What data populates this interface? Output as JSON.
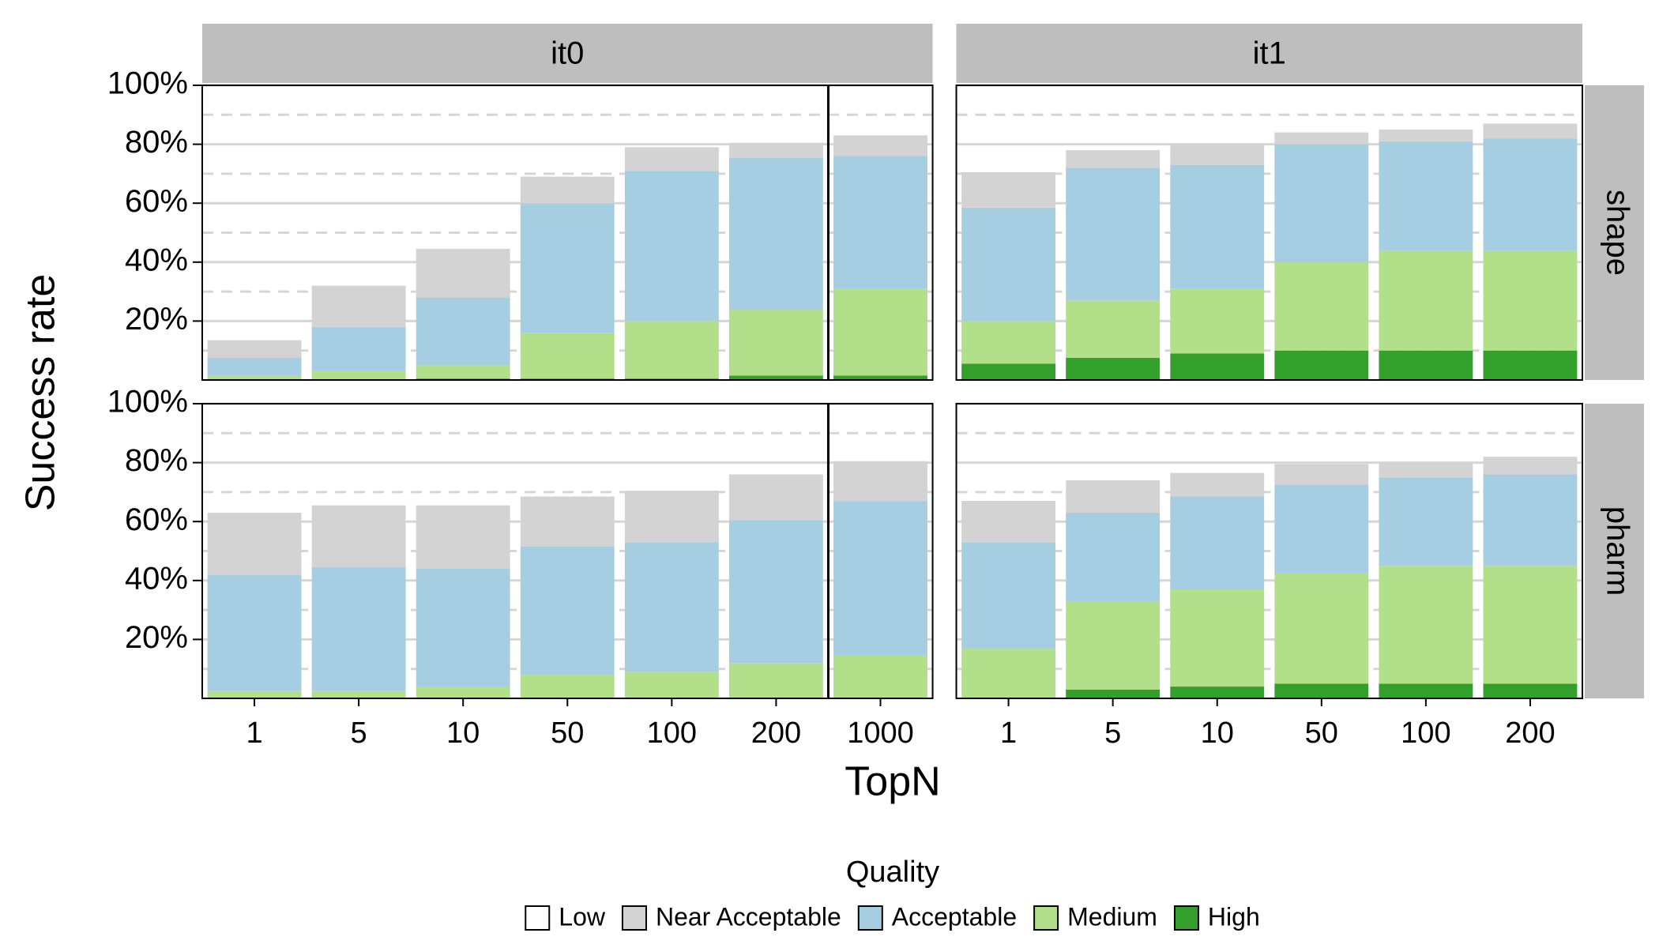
{
  "chart_data": {
    "type": "bar",
    "stacked": true,
    "y_label": "Success rate",
    "x_label": "TopN",
    "legend_title": "Quality",
    "ylim": [
      0,
      100
    ],
    "yticks": [
      {
        "value": 20,
        "label": "20%"
      },
      {
        "value": 40,
        "label": "40%"
      },
      {
        "value": 60,
        "label": "60%"
      },
      {
        "value": 80,
        "label": "80%"
      },
      {
        "value": 100,
        "label": "100%"
      }
    ],
    "minor_yticks": [
      10,
      30,
      50,
      70,
      90
    ],
    "grid": true,
    "legend_position": "bottom",
    "series": [
      {
        "name": "Low",
        "color": "#ffffff"
      },
      {
        "name": "Near Acceptable",
        "color": "#d3d3d3"
      },
      {
        "name": "Acceptable",
        "color": "#a6cee3"
      },
      {
        "name": "Medium",
        "color": "#b2df8a"
      },
      {
        "name": "High",
        "color": "#33a02c"
      }
    ],
    "stack_order": [
      4,
      3,
      2,
      1,
      0
    ],
    "columns": [
      {
        "label": "it0",
        "categories": [
          "1",
          "5",
          "10",
          "50",
          "100",
          "200",
          "1000"
        ],
        "vline_before_category": 6
      },
      {
        "label": "it1",
        "categories": [
          "1",
          "5",
          "10",
          "50",
          "100",
          "200"
        ]
      }
    ],
    "rows": [
      "shape",
      "pharm"
    ],
    "panels": [
      {
        "row": 0,
        "column": 0,
        "series": [
          {
            "values": [
              null,
              null,
              null,
              null,
              null,
              null,
              null
            ]
          },
          {
            "values": [
              6,
              14,
              16.5,
              9,
              8,
              5,
              7
            ]
          },
          {
            "values": [
              6,
              15,
              23,
              44,
              51,
              51.5,
              45
            ]
          },
          {
            "values": [
              1.5,
              3,
              4.5,
              15.5,
              19.5,
              22.5,
              29.5
            ]
          },
          {
            "values": [
              0,
              0,
              0.5,
              0.5,
              0.5,
              1.5,
              1.5
            ]
          }
        ]
      },
      {
        "row": 0,
        "column": 1,
        "series": [
          {
            "values": [
              null,
              null,
              null,
              null,
              null,
              null
            ]
          },
          {
            "values": [
              12,
              6,
              7,
              4,
              4,
              5
            ]
          },
          {
            "values": [
              38.5,
              45,
              42,
              40,
              37,
              38
            ]
          },
          {
            "values": [
              14.5,
              19.5,
              22,
              30,
              34,
              34
            ]
          },
          {
            "values": [
              5.5,
              7.5,
              9,
              10,
              10,
              10
            ]
          }
        ]
      },
      {
        "row": 1,
        "column": 0,
        "series": [
          {
            "values": [
              null,
              null,
              null,
              null,
              null,
              null,
              null
            ]
          },
          {
            "values": [
              21,
              21,
              21.5,
              17,
              17.5,
              15.5,
              13.5
            ]
          },
          {
            "values": [
              39.5,
              42,
              40,
              43.5,
              44,
              48.5,
              52.5
            ]
          },
          {
            "values": [
              2.5,
              2.5,
              4,
              8,
              9,
              12,
              14.5
            ]
          },
          {
            "values": [
              0,
              0,
              0,
              0,
              0,
              0,
              0
            ]
          }
        ]
      },
      {
        "row": 1,
        "column": 1,
        "series": [
          {
            "values": [
              null,
              null,
              null,
              null,
              null,
              null
            ]
          },
          {
            "values": [
              14,
              11,
              8,
              7,
              5,
              6
            ]
          },
          {
            "values": [
              36,
              30,
              31.5,
              30,
              30,
              31
            ]
          },
          {
            "values": [
              17,
              30,
              33,
              37.5,
              40,
              40
            ]
          },
          {
            "values": [
              0,
              3,
              4,
              5,
              5,
              5
            ]
          }
        ]
      }
    ]
  }
}
